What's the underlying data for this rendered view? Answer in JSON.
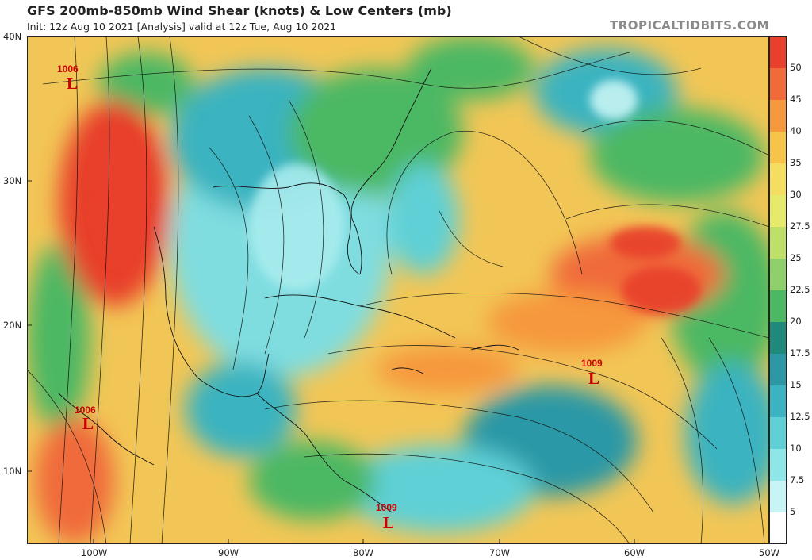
{
  "header": {
    "title": "GFS 200mb-850mb Wind Shear (knots) & Low Centers (mb)",
    "subtitle": "Init: 12z Aug 10 2021   [Analysis]   valid at 12z Tue, Aug 10 2021",
    "credit": "TROPICALTIDBITS.COM"
  },
  "axes": {
    "lat_labels": [
      "40N",
      "30N",
      "20N",
      "10N"
    ],
    "lon_labels": [
      "100W",
      "90W",
      "80W",
      "70W",
      "60W",
      "50W"
    ]
  },
  "colorbar": {
    "labels": [
      "50",
      "45",
      "40",
      "35",
      "30",
      "27.5",
      "25",
      "22.5",
      "20",
      "17.5",
      "15",
      "12.5",
      "10",
      "7.5",
      "5"
    ],
    "colors": [
      "#e8402a",
      "#f06a3a",
      "#f6983e",
      "#f7c44a",
      "#f5dd62",
      "#e6ea6a",
      "#bfe068",
      "#8fd06a",
      "#4cb863",
      "#1f8a7c",
      "#2c98a6",
      "#3bb3c0",
      "#5fd0d6",
      "#8fe6e9",
      "#c7f4f4",
      "#ffffff"
    ]
  },
  "lows": [
    {
      "id": "low-texas",
      "pressure": "1006",
      "letter": "L",
      "lat": 37.0,
      "lon": -101.5
    },
    {
      "id": "low-mexico-pacific",
      "pressure": "1006",
      "letter": "L",
      "lat": 13.0,
      "lon": -100.5
    },
    {
      "id": "low-panama",
      "pressure": "1009",
      "letter": "L",
      "lat": 6.2,
      "lon": -77.8
    },
    {
      "id": "low-antilles",
      "pressure": "1009",
      "letter": "L",
      "lat": 16.6,
      "lon": -62.5
    }
  ]
}
